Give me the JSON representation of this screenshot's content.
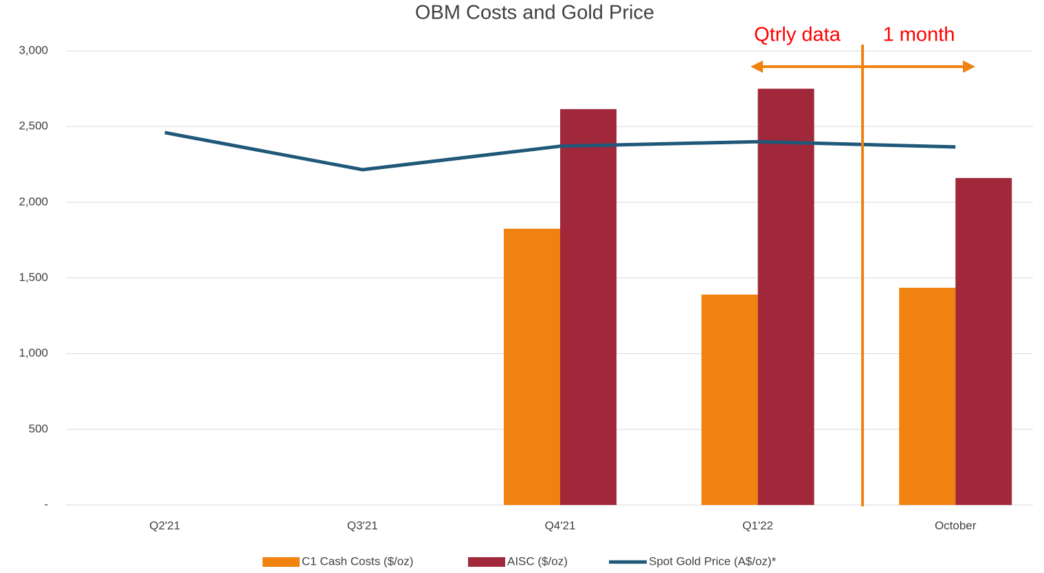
{
  "chart_data": {
    "type": "bar",
    "title": "OBM Costs and Gold Price",
    "categories": [
      "Q2'21",
      "Q3'21",
      "Q4'21",
      "Q1'22",
      "October"
    ],
    "series": [
      {
        "name": "C1 Cash Costs ($/oz)",
        "type": "bar",
        "color": "#f0820f",
        "values": [
          null,
          null,
          1825,
          1390,
          1435
        ]
      },
      {
        "name": "AISC ($/oz)",
        "type": "bar",
        "color": "#a0283a",
        "values": [
          null,
          null,
          2615,
          2750,
          2160
        ]
      },
      {
        "name": "Spot Gold Price (A$/oz)*",
        "type": "line",
        "color": "#1f5878",
        "values": [
          2460,
          2215,
          2370,
          2400,
          2365
        ]
      }
    ],
    "ylim": [
      0,
      3000
    ],
    "yticks": [
      {
        "value": 0,
        "label": "-"
      },
      500,
      {
        "value": 1000,
        "label": "1,000"
      },
      {
        "value": 1500,
        "label": "1,500"
      },
      {
        "value": 2000,
        "label": "2,000"
      },
      {
        "value": 2500,
        "label": "2,500"
      },
      {
        "value": 3000,
        "label": "3,000"
      }
    ],
    "grid": true,
    "legend": "bottom",
    "annotations": [
      "Qtrly data",
      "1 month"
    ]
  }
}
